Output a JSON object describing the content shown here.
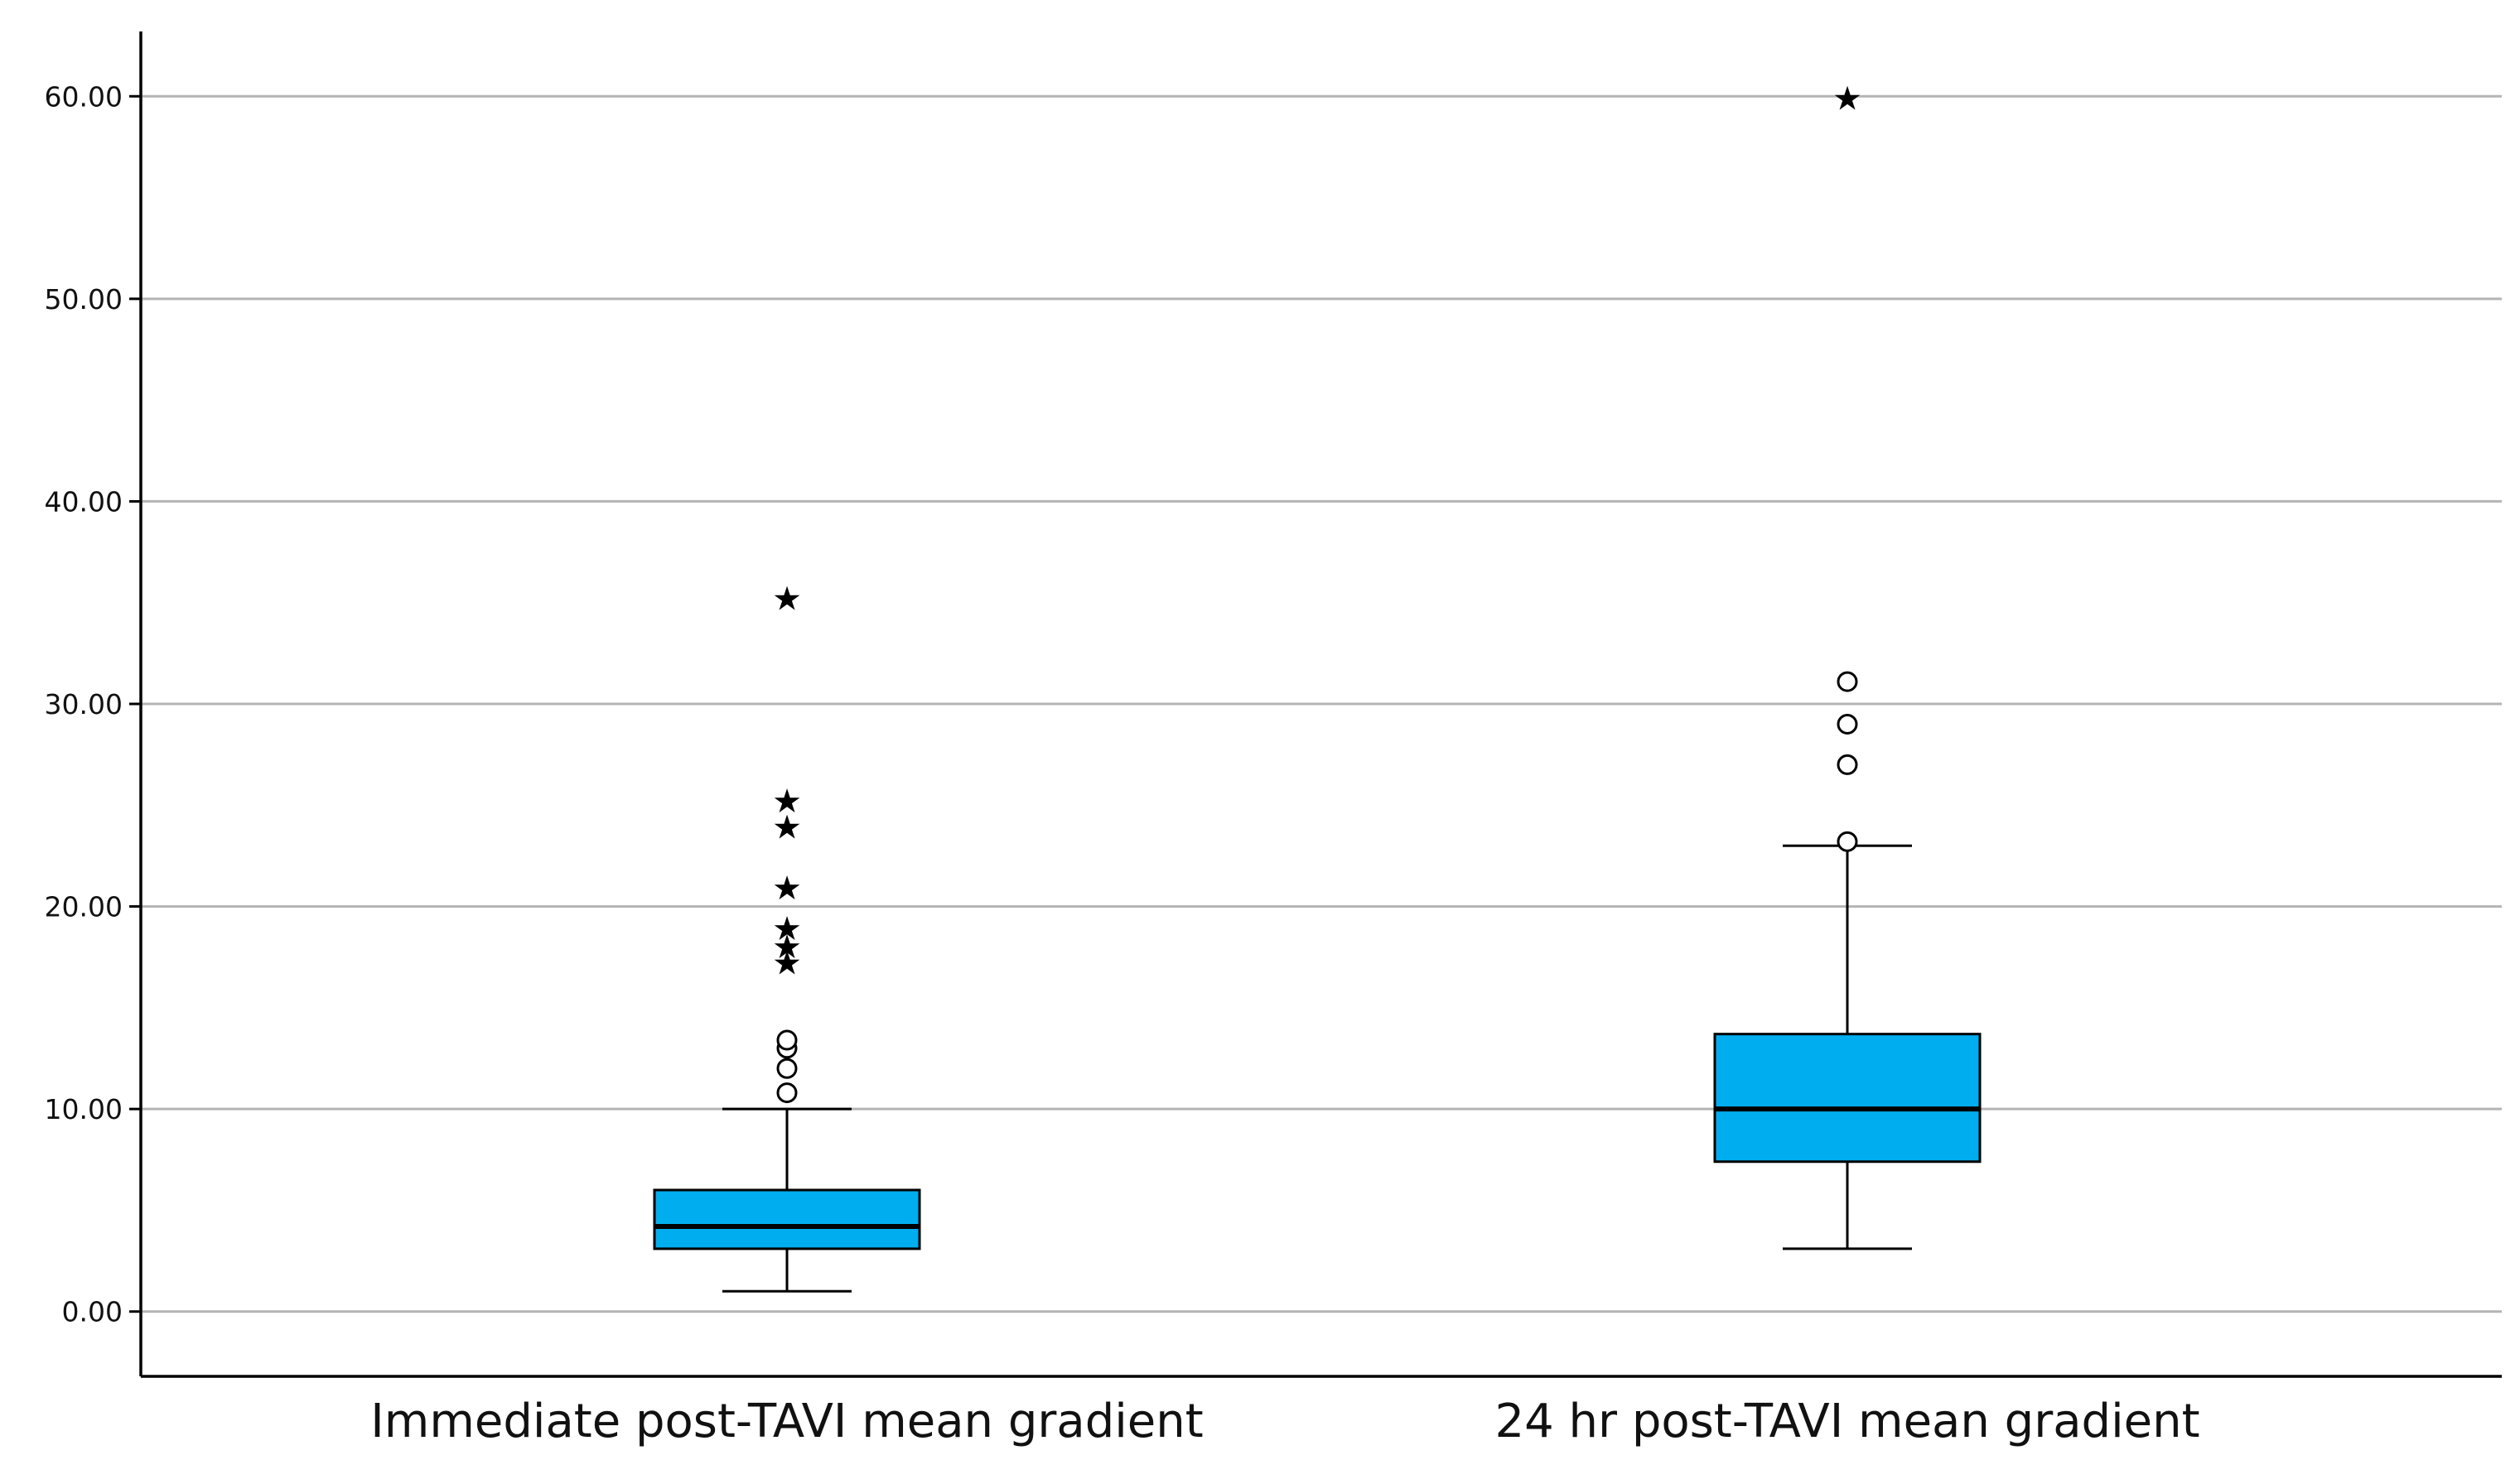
{
  "chart_data": {
    "type": "boxplot",
    "title": "",
    "xlabel": "",
    "ylabel": "",
    "ylim": [
      -3.2,
      63.2
    ],
    "y_ticks": [
      {
        "value": 0,
        "label": "0.00"
      },
      {
        "value": 10,
        "label": "10.00"
      },
      {
        "value": 20,
        "label": "20.00"
      },
      {
        "value": 30,
        "label": "30.00"
      },
      {
        "value": 40,
        "label": "40.00"
      },
      {
        "value": 50,
        "label": "50.00"
      },
      {
        "value": 60,
        "label": "60.00"
      }
    ],
    "grid": true,
    "box_color": "#00AEEF",
    "line_color": "#000000",
    "grid_color": "#B4B4B4",
    "categories": [
      "Immediate post-TAVI mean gradient",
      "24 hr post-TAVI mean gradient"
    ],
    "series": [
      {
        "name": "Immediate post-TAVI mean gradient",
        "whisker_low": 1.0,
        "q1": 3.1,
        "median": 4.2,
        "q3": 6.0,
        "whisker_high": 10.0,
        "outliers": [
          10.8,
          12.0,
          13.0,
          13.4
        ],
        "extremes": [
          17.3,
          18.1,
          19.0,
          21.0,
          24.0,
          25.3,
          35.3
        ]
      },
      {
        "name": "24 hr post-TAVI mean gradient",
        "whisker_low": 3.1,
        "q1": 7.4,
        "median": 10.0,
        "q3": 13.7,
        "whisker_high": 23.0,
        "outliers": [
          23.2,
          27.0,
          29.0,
          31.1
        ],
        "extremes": [
          60.0
        ]
      }
    ]
  }
}
